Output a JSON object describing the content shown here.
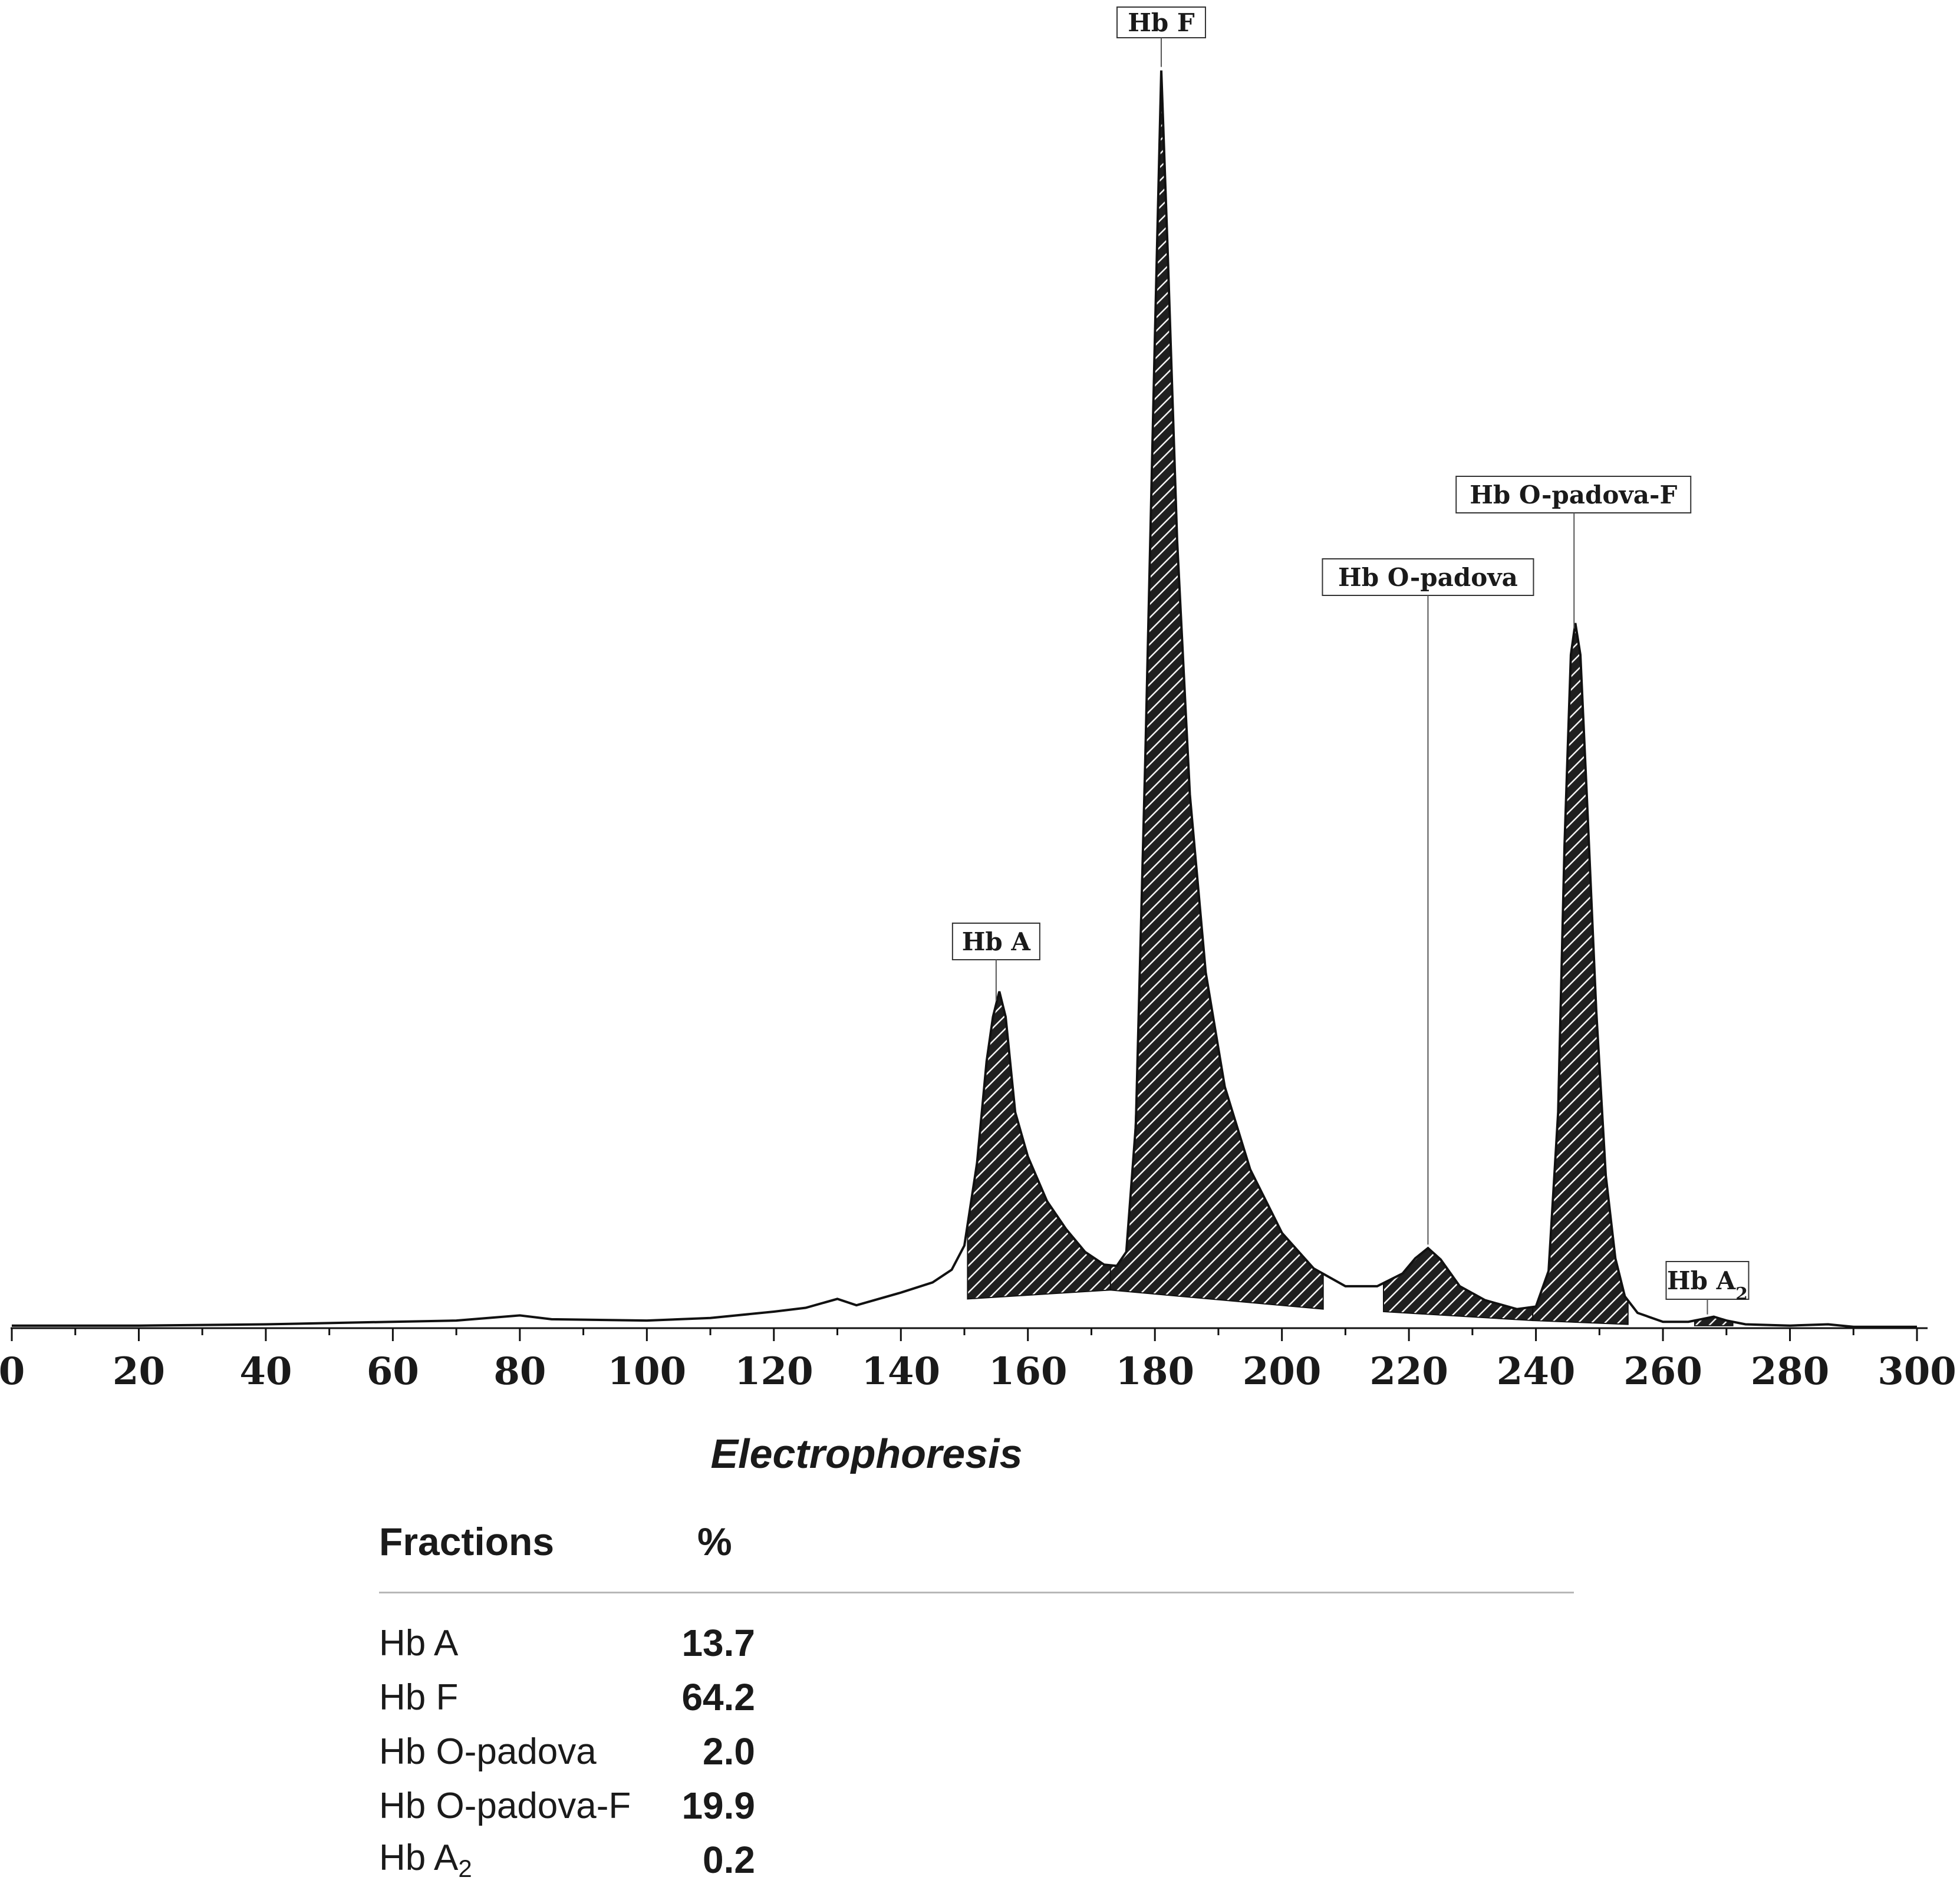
{
  "chart_data": {
    "type": "area",
    "xlabel": "Electrophoresis",
    "ylabel": "",
    "xlim": [
      0,
      300
    ],
    "x_ticks": [
      0,
      20,
      40,
      60,
      80,
      100,
      120,
      140,
      160,
      180,
      200,
      220,
      240,
      260,
      280,
      300
    ],
    "x_tick_labels": [
      "0",
      "20",
      "40",
      "60",
      "80",
      "100",
      "120",
      "140",
      "160",
      "180",
      "200",
      "220",
      "240",
      "260",
      "280",
      "300"
    ],
    "ylim": [
      0,
      100
    ],
    "peak_labels": [
      {
        "label": "Hb F",
        "x": 181
      },
      {
        "label": "Hb A",
        "x": 155
      },
      {
        "label": "Hb O-padova",
        "x": 223
      },
      {
        "label": "Hb O-padova-F",
        "x": 246
      },
      {
        "label": "Hb A",
        "sub": "2",
        "x": 267
      }
    ],
    "points": [
      [
        0,
        0.2
      ],
      [
        20,
        0.2
      ],
      [
        40,
        0.3
      ],
      [
        60,
        0.5
      ],
      [
        70,
        0.6
      ],
      [
        80,
        1.0
      ],
      [
        85,
        0.7
      ],
      [
        100,
        0.6
      ],
      [
        110,
        0.8
      ],
      [
        120,
        1.3
      ],
      [
        125,
        1.6
      ],
      [
        130,
        2.3
      ],
      [
        133,
        1.8
      ],
      [
        140,
        2.8
      ],
      [
        145,
        3.6
      ],
      [
        148,
        4.6
      ],
      [
        150,
        6.5
      ],
      [
        152,
        13
      ],
      [
        153.5,
        21
      ],
      [
        154.5,
        24.5
      ],
      [
        155.5,
        26.5
      ],
      [
        156.5,
        24.5
      ],
      [
        158,
        17
      ],
      [
        160,
        13.5
      ],
      [
        163,
        10
      ],
      [
        166,
        7.8
      ],
      [
        169,
        6
      ],
      [
        172,
        5
      ],
      [
        174,
        4.9
      ],
      [
        175.5,
        6
      ],
      [
        177,
        16
      ],
      [
        178.5,
        45
      ],
      [
        180,
        78
      ],
      [
        181,
        99
      ],
      [
        182,
        85
      ],
      [
        183.5,
        62
      ],
      [
        185.5,
        42
      ],
      [
        188,
        28
      ],
      [
        191,
        19
      ],
      [
        195,
        12.5
      ],
      [
        200,
        7.5
      ],
      [
        205,
        4.7
      ],
      [
        210,
        3.3
      ],
      [
        215,
        3.3
      ],
      [
        219,
        4.3
      ],
      [
        221,
        5.5
      ],
      [
        223,
        6.3
      ],
      [
        225,
        5.4
      ],
      [
        228,
        3.3
      ],
      [
        232,
        2.2
      ],
      [
        237,
        1.5
      ],
      [
        240,
        1.7
      ],
      [
        242,
        4.5
      ],
      [
        243.5,
        17
      ],
      [
        244.5,
        38
      ],
      [
        245.5,
        53
      ],
      [
        246.2,
        55.5
      ],
      [
        247,
        53
      ],
      [
        248,
        42
      ],
      [
        249.5,
        25
      ],
      [
        251,
        12
      ],
      [
        252.5,
        5.5
      ],
      [
        254,
        2.5
      ],
      [
        256,
        1.2
      ],
      [
        260,
        0.5
      ],
      [
        264,
        0.5
      ],
      [
        266,
        0.7
      ],
      [
        268,
        0.9
      ],
      [
        270,
        0.6
      ],
      [
        273,
        0.3
      ],
      [
        280,
        0.2
      ],
      [
        286,
        0.3
      ],
      [
        290,
        0.1
      ],
      [
        300,
        0.1
      ]
    ],
    "baselines": [
      {
        "from": [
          150.5,
          2.3
        ],
        "to": [
          173,
          3.0
        ]
      },
      {
        "from": [
          173,
          3.0
        ],
        "to": [
          206.5,
          1.5
        ]
      },
      {
        "from": [
          216,
          1.3
        ],
        "to": [
          239.5,
          0.6
        ]
      },
      {
        "from": [
          239.5,
          0.6
        ],
        "to": [
          254.5,
          0.3
        ]
      },
      {
        "from": [
          265,
          0.2
        ],
        "to": [
          271,
          0.2
        ]
      }
    ],
    "fill": "#1f1f1f",
    "hatch": "#ffffff",
    "grid": false
  },
  "results": {
    "header": {
      "name": "Fractions",
      "pct": "%"
    },
    "rows": [
      {
        "name": "Hb A",
        "pct": "13.7"
      },
      {
        "name": "Hb F",
        "pct": "64.2"
      },
      {
        "name": "Hb O-padova",
        "pct": "2.0"
      },
      {
        "name": "Hb O-padova-F",
        "pct": "19.9"
      },
      {
        "name": "Hb A",
        "sub": "2",
        "pct": "0.2"
      }
    ]
  }
}
